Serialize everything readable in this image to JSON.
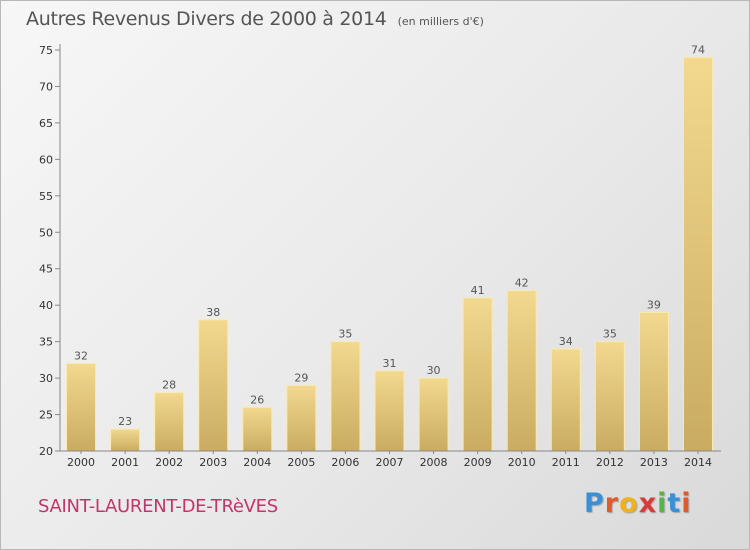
{
  "title": "Autres Revenus Divers de 2000 à 2014",
  "unit_note": "(en milliers d'€)",
  "commune": "SAINT-LAURENT-DE-TRèVES",
  "logo": {
    "text": "Proxiti",
    "colors": [
      "#3a8fd6",
      "#e05a2b",
      "#f0b21a",
      "#d93b3b",
      "#57b547",
      "#3a8fd6",
      "#e05a2b"
    ]
  },
  "colors": {
    "bar_top": "#f2d98f",
    "bar_bottom": "#c9ac62",
    "axis": "#888888",
    "text": "#555555",
    "commune": "#c0366c"
  },
  "chart_data": {
    "type": "bar",
    "categories": [
      "2000",
      "2001",
      "2002",
      "2003",
      "2004",
      "2005",
      "2006",
      "2007",
      "2008",
      "2009",
      "2010",
      "2011",
      "2012",
      "2013",
      "2014"
    ],
    "values": [
      32,
      23,
      28,
      38,
      26,
      29,
      35,
      31,
      30,
      41,
      42,
      34,
      35,
      39,
      74
    ],
    "ylim": [
      20,
      75
    ],
    "yticks": [
      20,
      25,
      30,
      35,
      40,
      45,
      50,
      55,
      60,
      65,
      70,
      75
    ],
    "grid": false,
    "data_labels": true
  }
}
